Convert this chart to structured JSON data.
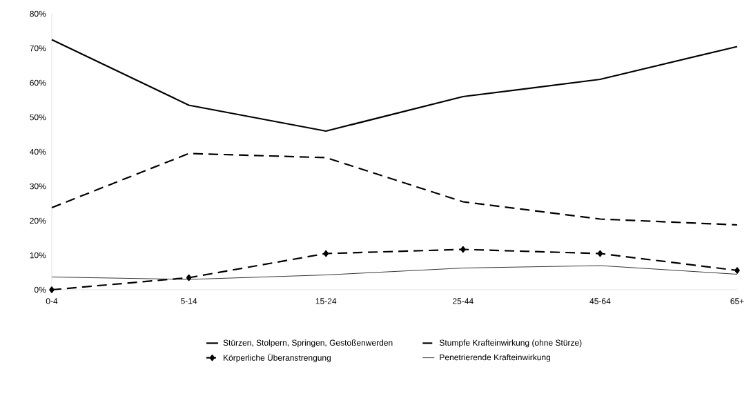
{
  "chart_data": {
    "type": "line",
    "categories": [
      "0-4",
      "5-14",
      "15-24",
      "25-44",
      "45-64",
      "65+"
    ],
    "series": [
      {
        "name": "Stürzen, Stolpern, Springen, Gestoßenwerden",
        "color": "#000000",
        "values": [
          72.5,
          53.5,
          46,
          56,
          61,
          70.5
        ],
        "line_style": "solid",
        "marker": "none"
      },
      {
        "name": "Stumpfe Krafteinwirkung (ohne Stürze)",
        "color": "#000000",
        "values": [
          23.8,
          39.5,
          38.3,
          25.5,
          20.5,
          18.8
        ],
        "line_style": "dashed",
        "marker": "none"
      },
      {
        "name": "Körperliche Überanstrengung",
        "color": "#000000",
        "values": [
          0,
          3.5,
          10.5,
          11.7,
          10.5,
          5.6
        ],
        "line_style": "dashed",
        "marker": "diamond"
      },
      {
        "name": "Penetrierende Krafteinwirkung",
        "color": "#000000",
        "values": [
          3.7,
          3,
          4.3,
          6.3,
          7,
          4.5
        ],
        "line_style": "solid",
        "marker": "none"
      }
    ],
    "ylim": [
      0,
      80
    ],
    "yticks": [
      {
        "value": 0,
        "label": "0%"
      },
      {
        "value": 10,
        "label": "10%"
      },
      {
        "value": 20,
        "label": "20%"
      },
      {
        "value": 30,
        "label": "30%"
      },
      {
        "value": 40,
        "label": "40%"
      },
      {
        "value": 50,
        "label": "50%"
      },
      {
        "value": 60,
        "label": "60%"
      },
      {
        "value": 70,
        "label": "70%"
      },
      {
        "value": 80,
        "label": "80%"
      }
    ],
    "grid": false,
    "legend": "bottom"
  }
}
